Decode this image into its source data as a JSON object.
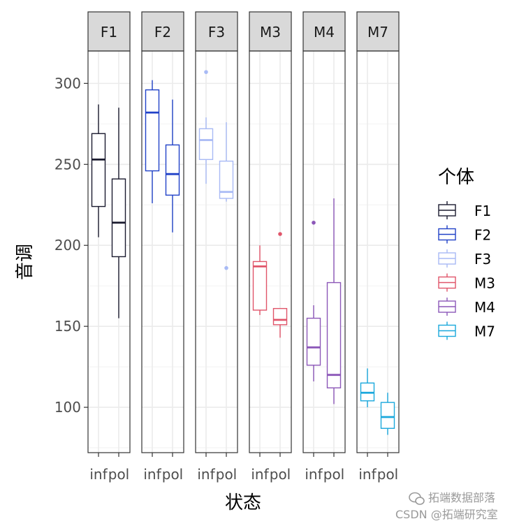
{
  "chart_data": {
    "type": "boxplot",
    "facet_by": "个体",
    "panels": [
      "F1",
      "F2",
      "F3",
      "M3",
      "M4",
      "M7"
    ],
    "categories": [
      "inf",
      "pol"
    ],
    "xlabel": "状态",
    "ylabel": "音调",
    "ylim": [
      72,
      320
    ],
    "yticks": [
      100,
      150,
      200,
      250,
      300
    ],
    "legend": {
      "title": "个体",
      "position": "right",
      "entries": [
        "F1",
        "F2",
        "F3",
        "M3",
        "M4",
        "M7"
      ]
    },
    "grid": true,
    "colors": {
      "F1": "#1b1b2f",
      "F2": "#2142c8",
      "F3": "#a8baf5",
      "M3": "#e0556a",
      "M4": "#8c57b8",
      "M7": "#1aa8dc"
    },
    "series": [
      {
        "name": "F1",
        "boxes": [
          {
            "category": "inf",
            "whisker_low": 205,
            "q1": 224,
            "median": 253,
            "q3": 269,
            "whisker_high": 287,
            "outliers": []
          },
          {
            "category": "pol",
            "whisker_low": 155,
            "q1": 193,
            "median": 214,
            "q3": 241,
            "whisker_high": 285,
            "outliers": []
          }
        ]
      },
      {
        "name": "F2",
        "boxes": [
          {
            "category": "inf",
            "whisker_low": 226,
            "q1": 246,
            "median": 282,
            "q3": 296,
            "whisker_high": 302,
            "outliers": []
          },
          {
            "category": "pol",
            "whisker_low": 208,
            "q1": 231,
            "median": 244,
            "q3": 262,
            "whisker_high": 290,
            "outliers": []
          }
        ]
      },
      {
        "name": "F3",
        "boxes": [
          {
            "category": "inf",
            "whisker_low": 238,
            "q1": 253,
            "median": 265,
            "q3": 272,
            "whisker_high": 279,
            "outliers": [
              307
            ]
          },
          {
            "category": "pol",
            "whisker_low": 227,
            "q1": 229,
            "median": 233,
            "q3": 252,
            "whisker_high": 276,
            "outliers": [
              186
            ]
          }
        ]
      },
      {
        "name": "M3",
        "boxes": [
          {
            "category": "inf",
            "whisker_low": 157,
            "q1": 160,
            "median": 187,
            "q3": 190,
            "whisker_high": 200,
            "outliers": []
          },
          {
            "category": "pol",
            "whisker_low": 143,
            "q1": 151,
            "median": 154,
            "q3": 161,
            "whisker_high": 161,
            "outliers": [
              207
            ]
          }
        ]
      },
      {
        "name": "M4",
        "boxes": [
          {
            "category": "inf",
            "whisker_low": 116,
            "q1": 126,
            "median": 137,
            "q3": 155,
            "whisker_high": 163,
            "outliers": [
              214
            ]
          },
          {
            "category": "pol",
            "whisker_low": 102,
            "q1": 112,
            "median": 120,
            "q3": 177,
            "whisker_high": 229,
            "outliers": []
          }
        ]
      },
      {
        "name": "M7",
        "boxes": [
          {
            "category": "inf",
            "whisker_low": 100,
            "q1": 104,
            "median": 109,
            "q3": 115,
            "whisker_high": 124,
            "outliers": []
          },
          {
            "category": "pol",
            "whisker_low": 83,
            "q1": 87,
            "median": 94,
            "q3": 103,
            "whisker_high": 109,
            "outliers": []
          }
        ]
      }
    ]
  },
  "watermark": {
    "line1": "拓端数据部落",
    "line2": "CSDN @拓端研究室"
  }
}
